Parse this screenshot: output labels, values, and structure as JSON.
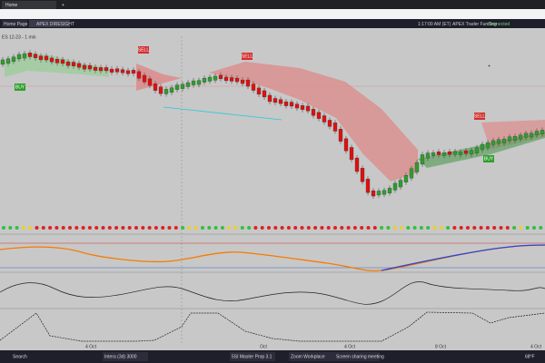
{
  "browser": {
    "tab": "Home",
    "new_tab": "+"
  },
  "toolbar": {
    "tabs": [
      "Home Page",
      "APEX DIRESIGHT"
    ],
    "clock": "1:17:00 AM (ET)",
    "account": "APEX Trader Funding",
    "status": "Connected"
  },
  "chart": {
    "symbol": "ES 12-23 - 1 min",
    "signals": [
      "SELL",
      "SELL",
      "SELL",
      "BUY",
      "BUY"
    ],
    "time_axis": [
      "4 Oct",
      "Oct",
      "4 Oct",
      "8 Oct",
      "4 Oct"
    ]
  },
  "taskbar": {
    "search": "Search",
    "items": [
      "Intera (3d) 3000",
      "5SI Master Prop 3.1",
      "Zoom Workplace",
      "Screen sharing meeting"
    ],
    "weather": "68°F"
  }
}
